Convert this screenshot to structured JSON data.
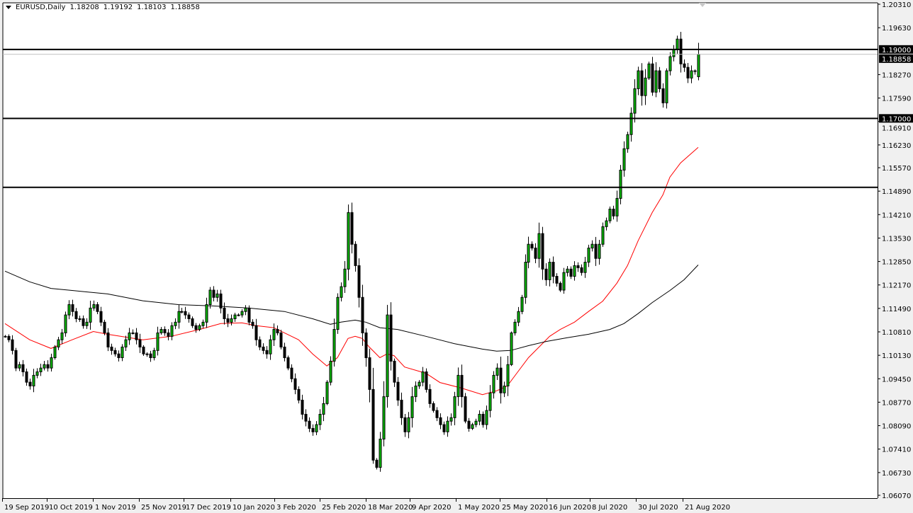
{
  "header": {
    "symbol": "EURUSD,Daily",
    "open": "1.18208",
    "high": "1.19192",
    "low": "1.18103",
    "close": "1.18858"
  },
  "chart_data": {
    "type": "candlestick",
    "title": "EURUSD,Daily",
    "ylim": [
      1.0607,
      1.2031
    ],
    "y_ticks": [
      "1.20310",
      "1.19630",
      "1.18270",
      "1.17590",
      "1.16910",
      "1.16230",
      "1.15570",
      "1.14890",
      "1.14210",
      "1.13530",
      "1.12850",
      "1.12170",
      "1.11490",
      "1.10810",
      "1.10130",
      "1.09450",
      "1.08770",
      "1.08090",
      "1.07410",
      "1.06730",
      "1.06070"
    ],
    "x_ticks": [
      "19 Sep 2019",
      "10 Oct 2019",
      "1 Nov 2019",
      "25 Nov 2019",
      "17 Dec 2019",
      "10 Jan 2020",
      "3 Feb 2020",
      "25 Feb 2020",
      "18 Mar 2020",
      "9 Apr 2020",
      "1 May 2020",
      "25 May 2020",
      "16 Jun 2020",
      "8 Jul 2020",
      "30 Jul 2020",
      "21 Aug 2020"
    ],
    "grid": false,
    "bull_color": "#00c000",
    "bear_color": "#000000",
    "close": [
      1.1068,
      1.1058,
      1.1027,
      1.0976,
      1.0986,
      1.0965,
      1.0935,
      1.0924,
      1.0955,
      1.0965,
      1.0976,
      1.0986,
      1.0976,
      1.1006,
      1.1037,
      1.1058,
      1.1078,
      1.113,
      1.116,
      1.114,
      1.1119,
      1.1119,
      1.1099,
      1.1109,
      1.115,
      1.116,
      1.114,
      1.1109,
      1.1078,
      1.1037,
      1.1027,
      1.1017,
      1.1006,
      1.1037,
      1.1058,
      1.1078,
      1.1078,
      1.1058,
      1.1037,
      1.1017,
      1.1017,
      1.1006,
      1.1027,
      1.1078,
      1.1088,
      1.1078,
      1.1068,
      1.1099,
      1.1109,
      1.114,
      1.114,
      1.113,
      1.1119,
      1.1099,
      1.1088,
      1.1099,
      1.1109,
      1.116,
      1.1202,
      1.1181,
      1.1191,
      1.115,
      1.1119,
      1.1109,
      1.1119,
      1.113,
      1.113,
      1.114,
      1.115,
      1.1109,
      1.1099,
      1.1058,
      1.1037,
      1.1027,
      1.1017,
      1.1058,
      1.1088,
      1.1078,
      1.1037,
      1.1006,
      1.0976,
      1.0945,
      1.0914,
      1.0883,
      1.0842,
      1.0822,
      1.0801,
      1.0791,
      1.0812,
      1.0842,
      1.0873,
      1.0935,
      1.0996,
      1.1088,
      1.1181,
      1.1212,
      1.1263,
      1.1427,
      1.1335,
      1.1273,
      1.1181,
      1.1078,
      1.1006,
      1.0914,
      1.0709,
      1.0688,
      1.077,
      1.0893,
      1.113,
      1.0996,
      1.0935,
      1.0883,
      1.0832,
      1.0791,
      1.0832,
      1.0893,
      1.0924,
      1.0935,
      1.0965,
      1.0914,
      1.0873,
      1.0853,
      1.0832,
      1.0812,
      1.0791,
      1.0822,
      1.0832,
      1.0893,
      1.0955,
      1.0893,
      1.0822,
      1.0801,
      1.0812,
      1.0822,
      1.0842,
      1.0812,
      1.0853,
      1.0904,
      1.0955,
      1.0976,
      1.0904,
      1.0924,
      1.0986,
      1.1078,
      1.1109,
      1.114,
      1.1181,
      1.1283,
      1.1335,
      1.1324,
      1.1294,
      1.1366,
      1.1263,
      1.1232,
      1.1283,
      1.1242,
      1.1222,
      1.1202,
      1.1253,
      1.1263,
      1.1242,
      1.1273,
      1.1267,
      1.1253,
      1.1283,
      1.1324,
      1.1335,
      1.1294,
      1.1335,
      1.1386,
      1.1403,
      1.1437,
      1.1417,
      1.1468,
      1.155,
      1.1612,
      1.1653,
      1.1715,
      1.1786,
      1.1838,
      1.1766,
      1.1817,
      1.1858,
      1.1776,
      1.1838,
      1.1786,
      1.1745,
      1.1838,
      1.1879,
      1.1899,
      1.193,
      1.1858,
      1.1848,
      1.1817,
      1.1838,
      1.1838,
      1.18858
    ],
    "last_candle": {
      "open": 1.18208,
      "high": 1.19192,
      "low": 1.18103,
      "close": 1.18858
    },
    "moving_averages": [
      {
        "color": "#ff0000",
        "points": [
          [
            0,
            1.1105
          ],
          [
            7,
            1.1058
          ],
          [
            13,
            1.1033
          ],
          [
            19,
            1.1058
          ],
          [
            25,
            1.1082
          ],
          [
            29,
            1.1074
          ],
          [
            39,
            1.1058
          ],
          [
            47,
            1.1068
          ],
          [
            55,
            1.1088
          ],
          [
            61,
            1.1105
          ],
          [
            67,
            1.1107
          ],
          [
            71,
            1.1099
          ],
          [
            76,
            1.1093
          ],
          [
            83,
            1.1058
          ],
          [
            87,
            1.1017
          ],
          [
            91,
            1.0982
          ],
          [
            94,
            1.1006
          ],
          [
            97,
            1.1062
          ],
          [
            99,
            1.1068
          ],
          [
            101,
            1.1062
          ],
          [
            103,
            1.1037
          ],
          [
            106,
            1.1006
          ],
          [
            108,
            1.1017
          ],
          [
            110,
            1.1012
          ],
          [
            113,
            1.0979
          ],
          [
            119,
            1.0961
          ],
          [
            123,
            1.0934
          ],
          [
            129,
            1.0918
          ],
          [
            135,
            1.0899
          ],
          [
            139,
            1.091
          ],
          [
            142,
            1.0924
          ],
          [
            145,
            1.0965
          ],
          [
            148,
            1.1006
          ],
          [
            151,
            1.1037
          ],
          [
            154,
            1.1068
          ],
          [
            157,
            1.1088
          ],
          [
            161,
            1.1109
          ],
          [
            165,
            1.114
          ],
          [
            169,
            1.117
          ],
          [
            173,
            1.1222
          ],
          [
            176,
            1.1273
          ],
          [
            179,
            1.1345
          ],
          [
            183,
            1.1427
          ],
          [
            186,
            1.1478
          ],
          [
            188,
            1.153
          ],
          [
            191,
            1.1571
          ],
          [
            196,
            1.1616
          ]
        ]
      },
      {
        "color": "#000000",
        "points": [
          [
            0,
            1.1257
          ],
          [
            7,
            1.1226
          ],
          [
            13,
            1.1207
          ],
          [
            19,
            1.1201
          ],
          [
            29,
            1.1191
          ],
          [
            39,
            1.1171
          ],
          [
            49,
            1.116
          ],
          [
            59,
            1.1156
          ],
          [
            69,
            1.115
          ],
          [
            79,
            1.114
          ],
          [
            87,
            1.1119
          ],
          [
            92,
            1.1103
          ],
          [
            95,
            1.1109
          ],
          [
            99,
            1.1115
          ],
          [
            102,
            1.1109
          ],
          [
            106,
            1.1093
          ],
          [
            111,
            1.1088
          ],
          [
            119,
            1.1068
          ],
          [
            127,
            1.1047
          ],
          [
            135,
            1.1031
          ],
          [
            139,
            1.1025
          ],
          [
            143,
            1.1027
          ],
          [
            148,
            1.1041
          ],
          [
            153,
            1.1053
          ],
          [
            159,
            1.1064
          ],
          [
            165,
            1.1074
          ],
          [
            171,
            1.1088
          ],
          [
            175,
            1.1105
          ],
          [
            179,
            1.1134
          ],
          [
            183,
            1.1166
          ],
          [
            188,
            1.1201
          ],
          [
            192,
            1.1232
          ],
          [
            196,
            1.1275
          ]
        ]
      }
    ],
    "horizontal_levels": [
      {
        "price": 1.19,
        "label": "1.19000"
      },
      {
        "price": 1.17,
        "label": "1.17000"
      },
      {
        "price": 1.15,
        "label": ""
      }
    ],
    "bid_line": {
      "price": 1.18858,
      "label": "1.18858",
      "color": "#c0c0c0"
    }
  }
}
